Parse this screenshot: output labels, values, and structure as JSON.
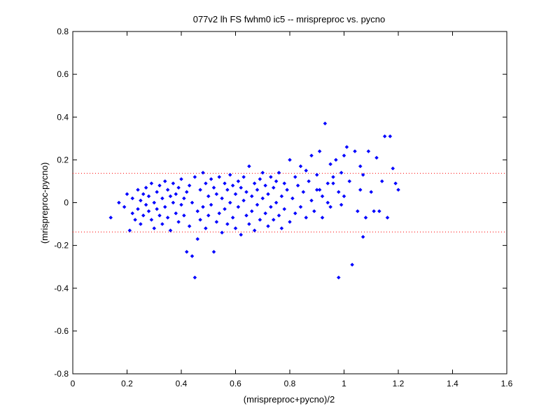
{
  "chart_data": {
    "type": "scatter",
    "title": "077v2 lh FS fwhm0 ic5 -- mrispreproc vs. pycno",
    "xlabel": "(mrispreproc+pycno)/2",
    "ylabel": "(mrispreproc-pycno)",
    "xlim": [
      0,
      1.6
    ],
    "ylim": [
      -0.8,
      0.8
    ],
    "xticks": [
      0,
      0.2,
      0.4,
      0.6,
      0.8,
      1,
      1.2,
      1.4,
      1.6
    ],
    "xtick_labels": [
      "0",
      "0.2",
      "0.4",
      "0.6",
      "0.8",
      "1",
      "1.2",
      "1.4",
      "1.6"
    ],
    "yticks": [
      -0.8,
      -0.6,
      -0.4,
      -0.2,
      0,
      0.2,
      0.4,
      0.6,
      0.8
    ],
    "ytick_labels": [
      "-0.8",
      "-0.6",
      "-0.4",
      "-0.2",
      "0",
      "0.2",
      "0.4",
      "0.6",
      "0.8"
    ],
    "grid": false,
    "marker_color": "#0000ff",
    "reference_line_color": "#ff0000",
    "reference_lines_y": [
      0.137,
      -0.137
    ],
    "points": [
      [
        0.14,
        -0.07
      ],
      [
        0.17,
        0.0
      ],
      [
        0.19,
        -0.02
      ],
      [
        0.2,
        0.04
      ],
      [
        0.21,
        -0.13
      ],
      [
        0.22,
        0.02
      ],
      [
        0.22,
        -0.05
      ],
      [
        0.23,
        -0.08
      ],
      [
        0.24,
        0.06
      ],
      [
        0.24,
        -0.03
      ],
      [
        0.25,
        0.01
      ],
      [
        0.25,
        -0.1
      ],
      [
        0.26,
        0.04
      ],
      [
        0.26,
        -0.06
      ],
      [
        0.27,
        0.07
      ],
      [
        0.27,
        -0.01
      ],
      [
        0.28,
        -0.04
      ],
      [
        0.28,
        0.03
      ],
      [
        0.29,
        0.09
      ],
      [
        0.29,
        -0.08
      ],
      [
        0.3,
        0.0
      ],
      [
        0.3,
        -0.12
      ],
      [
        0.31,
        0.05
      ],
      [
        0.31,
        -0.03
      ],
      [
        0.32,
        0.08
      ],
      [
        0.32,
        -0.06
      ],
      [
        0.33,
        0.02
      ],
      [
        0.33,
        -0.1
      ],
      [
        0.34,
        0.1
      ],
      [
        0.34,
        -0.02
      ],
      [
        0.35,
        0.06
      ],
      [
        0.35,
        -0.07
      ],
      [
        0.36,
        0.03
      ],
      [
        0.36,
        -0.13
      ],
      [
        0.37,
        0.0
      ],
      [
        0.37,
        0.09
      ],
      [
        0.38,
        -0.05
      ],
      [
        0.38,
        0.04
      ],
      [
        0.39,
        -0.09
      ],
      [
        0.39,
        0.07
      ],
      [
        0.4,
        -0.01
      ],
      [
        0.4,
        0.11
      ],
      [
        0.41,
        -0.06
      ],
      [
        0.41,
        0.02
      ],
      [
        0.42,
        -0.23
      ],
      [
        0.42,
        0.05
      ],
      [
        0.43,
        -0.11
      ],
      [
        0.43,
        0.08
      ],
      [
        0.44,
        -0.25
      ],
      [
        0.44,
        0.0
      ],
      [
        0.45,
        -0.35
      ],
      [
        0.45,
        0.12
      ],
      [
        0.46,
        -0.17
      ],
      [
        0.46,
        -0.04
      ],
      [
        0.47,
        0.06
      ],
      [
        0.47,
        -0.08
      ],
      [
        0.48,
        0.14
      ],
      [
        0.48,
        -0.02
      ],
      [
        0.49,
        0.09
      ],
      [
        0.49,
        -0.12
      ],
      [
        0.5,
        0.03
      ],
      [
        0.5,
        -0.06
      ],
      [
        0.51,
        0.11
      ],
      [
        0.51,
        -0.01
      ],
      [
        0.52,
        -0.23
      ],
      [
        0.52,
        0.07
      ],
      [
        0.53,
        -0.09
      ],
      [
        0.53,
        0.04
      ],
      [
        0.54,
        0.12
      ],
      [
        0.54,
        -0.05
      ],
      [
        0.55,
        0.02
      ],
      [
        0.55,
        -0.14
      ],
      [
        0.56,
        0.09
      ],
      [
        0.56,
        -0.03
      ],
      [
        0.57,
        0.06
      ],
      [
        0.57,
        -0.1
      ],
      [
        0.58,
        0.13
      ],
      [
        0.58,
        0.0
      ],
      [
        0.59,
        -0.07
      ],
      [
        0.59,
        0.08
      ],
      [
        0.6,
        0.04
      ],
      [
        0.6,
        -0.12
      ],
      [
        0.61,
        0.1
      ],
      [
        0.61,
        -0.02
      ],
      [
        0.62,
        0.07
      ],
      [
        0.62,
        -0.15
      ],
      [
        0.63,
        0.01
      ],
      [
        0.63,
        0.12
      ],
      [
        0.64,
        -0.06
      ],
      [
        0.64,
        0.05
      ],
      [
        0.65,
        -0.1
      ],
      [
        0.65,
        0.17
      ],
      [
        0.66,
        0.03
      ],
      [
        0.66,
        -0.04
      ],
      [
        0.67,
        0.09
      ],
      [
        0.67,
        -0.13
      ],
      [
        0.68,
        0.06
      ],
      [
        0.68,
        -0.01
      ],
      [
        0.69,
        0.11
      ],
      [
        0.69,
        -0.08
      ],
      [
        0.7,
        0.02
      ],
      [
        0.7,
        0.14
      ],
      [
        0.71,
        -0.05
      ],
      [
        0.71,
        0.08
      ],
      [
        0.72,
        -0.11
      ],
      [
        0.72,
        0.04
      ],
      [
        0.73,
        0.12
      ],
      [
        0.73,
        -0.02
      ],
      [
        0.74,
        0.07
      ],
      [
        0.74,
        -0.08
      ],
      [
        0.75,
        0.0
      ],
      [
        0.75,
        0.1
      ],
      [
        0.76,
        -0.06
      ],
      [
        0.76,
        0.14
      ],
      [
        0.77,
        0.03
      ],
      [
        0.77,
        -0.12
      ],
      [
        0.78,
        0.09
      ],
      [
        0.78,
        -0.03
      ],
      [
        0.79,
        0.06
      ],
      [
        0.8,
        -0.09
      ],
      [
        0.8,
        0.2
      ],
      [
        0.81,
        0.02
      ],
      [
        0.82,
        0.12
      ],
      [
        0.82,
        -0.05
      ],
      [
        0.83,
        0.08
      ],
      [
        0.84,
        0.17
      ],
      [
        0.84,
        -0.02
      ],
      [
        0.85,
        0.05
      ],
      [
        0.86,
        0.15
      ],
      [
        0.86,
        -0.07
      ],
      [
        0.87,
        0.1
      ],
      [
        0.88,
        0.01
      ],
      [
        0.88,
        0.22
      ],
      [
        0.89,
        -0.04
      ],
      [
        0.9,
        0.13
      ],
      [
        0.9,
        0.06
      ],
      [
        0.91,
        0.24
      ],
      [
        0.92,
        -0.07
      ],
      [
        0.92,
        0.03
      ],
      [
        0.93,
        0.37
      ],
      [
        0.94,
        0.09
      ],
      [
        0.95,
        0.18
      ],
      [
        0.95,
        -0.02
      ],
      [
        0.96,
        0.12
      ],
      [
        0.97,
        0.2
      ],
      [
        0.98,
        -0.35
      ],
      [
        0.98,
        0.05
      ],
      [
        0.99,
        0.14
      ],
      [
        1.0,
        0.22
      ],
      [
        1.0,
        0.03
      ],
      [
        1.01,
        0.26
      ],
      [
        1.02,
        0.1
      ],
      [
        1.03,
        -0.29
      ],
      [
        1.04,
        0.24
      ],
      [
        1.05,
        -0.04
      ],
      [
        1.06,
        0.17
      ],
      [
        1.07,
        0.13
      ],
      [
        1.07,
        -0.16
      ],
      [
        1.09,
        0.24
      ],
      [
        1.1,
        0.05
      ],
      [
        1.11,
        -0.04
      ],
      [
        1.12,
        0.21
      ],
      [
        1.14,
        0.1
      ],
      [
        1.15,
        0.31
      ],
      [
        1.16,
        -0.07
      ],
      [
        1.17,
        0.31
      ],
      [
        1.18,
        0.16
      ],
      [
        1.19,
        0.09
      ],
      [
        1.2,
        0.06
      ],
      [
        1.06,
        0.06
      ],
      [
        1.08,
        -0.07
      ],
      [
        1.13,
        -0.04
      ],
      [
        0.96,
        0.09
      ],
      [
        0.99,
        -0.01
      ],
      [
        0.94,
        0.0
      ],
      [
        0.91,
        0.06
      ]
    ]
  }
}
